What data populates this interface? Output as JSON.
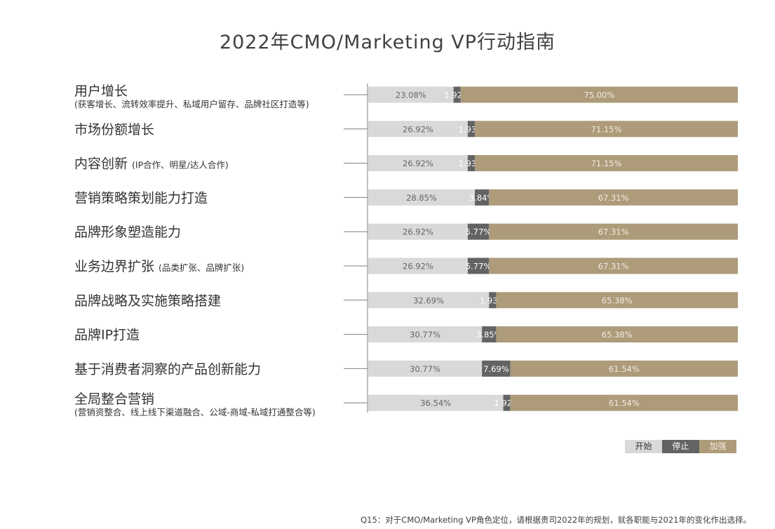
{
  "chart_data": {
    "type": "bar",
    "orientation": "horizontal",
    "stacked": true,
    "title": "2022年CMO/Marketing VP行动指南",
    "categories": [
      {
        "main": "用户增长",
        "sub": "(获客增长、流转效率提升、私域用户留存、品牌社区打造等)",
        "sub_inline": false
      },
      {
        "main": "市场份额增长",
        "sub": "",
        "sub_inline": true
      },
      {
        "main": "内容创新",
        "sub": "(IP合作、明星/达人合作)",
        "sub_inline": true
      },
      {
        "main": "营销策略策划能力打造",
        "sub": "",
        "sub_inline": true
      },
      {
        "main": "品牌形象塑造能力",
        "sub": "",
        "sub_inline": true
      },
      {
        "main": "业务边界扩张",
        "sub": "(品类扩张、品牌扩张)",
        "sub_inline": true
      },
      {
        "main": "品牌战略及实施策略搭建",
        "sub": "",
        "sub_inline": true
      },
      {
        "main": "品牌IP打造",
        "sub": "",
        "sub_inline": true
      },
      {
        "main": "基于消费者洞察的产品创新能力",
        "sub": "",
        "sub_inline": true
      },
      {
        "main": "全局整合营销",
        "sub": "(营销资整合、线上线下渠道融合、公域-商域-私域打通整合等)",
        "sub_inline": false
      }
    ],
    "series": [
      {
        "name": "开始",
        "color": "#d9d9d9",
        "label_color": "#666666",
        "values": [
          23.08,
          26.92,
          26.92,
          28.85,
          26.92,
          26.92,
          32.69,
          30.77,
          30.77,
          36.54
        ],
        "labels": [
          "23.08%",
          "26.92%",
          "26.92%",
          "28.85%",
          "26.92%",
          "26.92%",
          "32.69%",
          "30.77%",
          "30.77%",
          "36.54%"
        ]
      },
      {
        "name": "停止",
        "color": "#636363",
        "label_color": "#ffffff",
        "values": [
          1.92,
          1.93,
          1.93,
          3.84,
          5.77,
          5.77,
          1.93,
          3.85,
          7.69,
          1.92
        ],
        "labels": [
          "1.92%",
          "1.93%",
          "1.93%",
          "3.84%",
          "5.77%",
          "5.77%",
          "1.93%",
          "3.85%",
          "7.69%",
          "1.92%"
        ]
      },
      {
        "name": "加强",
        "color": "#ad9b7a",
        "label_color": "#f2ece0",
        "values": [
          75.0,
          71.15,
          71.15,
          67.31,
          67.31,
          67.31,
          65.38,
          65.38,
          61.54,
          61.54
        ],
        "labels": [
          "75.00%",
          "71.15%",
          "71.15%",
          "67.31%",
          "67.31%",
          "67.31%",
          "65.38%",
          "65.38%",
          "61.54%",
          "61.54%"
        ]
      }
    ],
    "xlim": [
      0,
      100
    ],
    "legend": "bottom-right"
  },
  "footnote": "Q15：对于CMO/Marketing VP角色定位，请根据贵司2022年的规划，就各职能与2021年的变化作出选择。"
}
